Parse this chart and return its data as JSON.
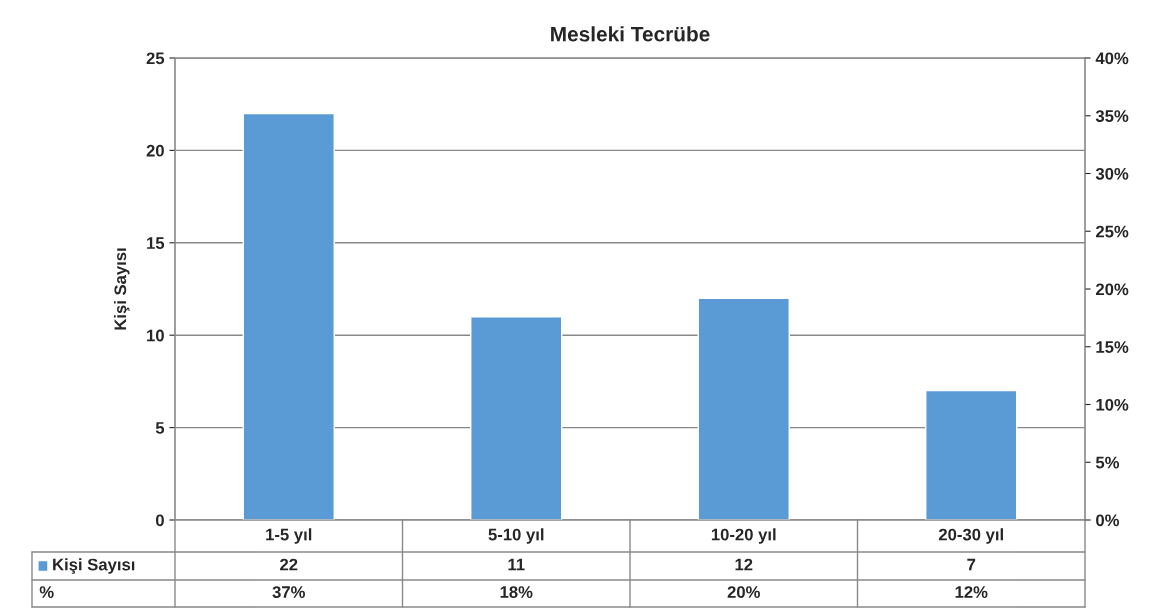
{
  "chart_data": {
    "type": "bar",
    "title": "Mesleki Tecrübe",
    "ylabel": "Kişi Sayısı",
    "categories": [
      "1-5 yıl",
      "5-10 yıl",
      "10-20 yıl",
      "20-30 yıl"
    ],
    "series": [
      {
        "name": "Kişi Sayısı",
        "color": "#5b9bd5",
        "values": [
          22,
          11,
          12,
          7
        ]
      }
    ],
    "annotations": [
      "%",
      "37%",
      "18%",
      "20%",
      "12%"
    ],
    "data_labels": true,
    "ylim": [
      0,
      25
    ],
    "yticks": [
      0,
      5,
      10,
      15,
      20,
      25
    ],
    "y2lim": [
      0,
      40
    ],
    "y2ticks": [
      {
        "value": 0,
        "label": "0%"
      },
      {
        "value": 5,
        "label": "5%"
      },
      {
        "value": 10,
        "label": "10%"
      },
      {
        "value": 15,
        "label": "15%"
      },
      {
        "value": 20,
        "label": "20%"
      },
      {
        "value": 25,
        "label": "25%"
      },
      {
        "value": 30,
        "label": "30%"
      },
      {
        "value": 35,
        "label": "35%"
      },
      {
        "value": 40,
        "label": "40%"
      }
    ],
    "grid": "y",
    "legend": "bottom left"
  }
}
